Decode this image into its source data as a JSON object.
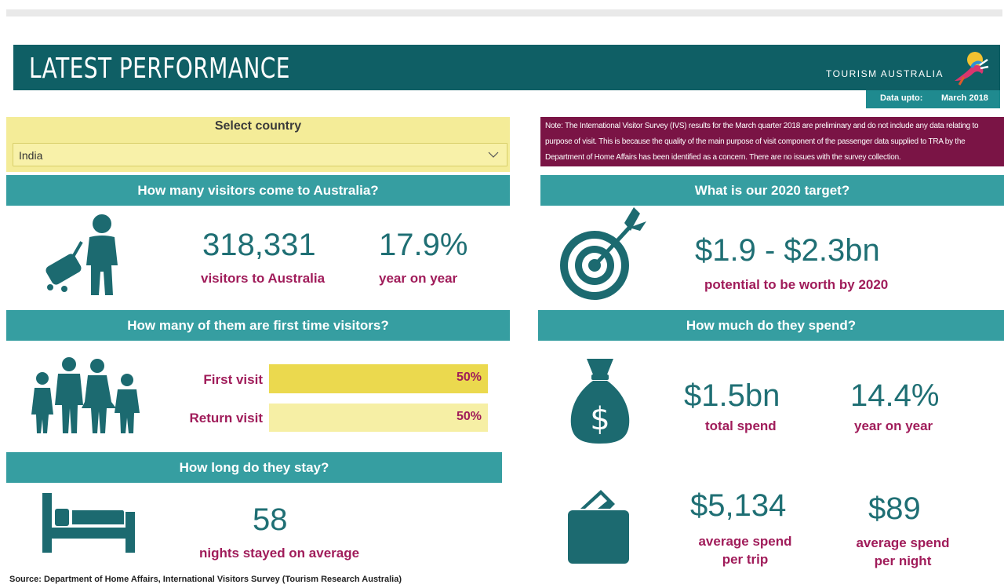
{
  "header": {
    "title": "LATEST PERFORMANCE",
    "brand": "TOURISM AUSTRALIA",
    "data_upto_label": "Data upto:",
    "data_upto_value": "March 2018"
  },
  "filter": {
    "label": "Select country",
    "selected": "India"
  },
  "note": "Note: The International Visitor Survey (IVS) results for the March quarter 2018 are preliminary and do not include any data relating to purpose of visit. This is because the quality of the main purpose of visit component of the passenger data supplied to TRA by the Department of Home Affairs has been identified as a concern. There are no issues with the survey collection.",
  "visitors": {
    "heading": "How many visitors come to Australia?",
    "count": "318,331",
    "count_label": "visitors to Australia",
    "growth": "17.9%",
    "growth_label": "year on year"
  },
  "target": {
    "heading": "What is our 2020 target?",
    "value": "$1.9 - $2.3bn",
    "label": "potential to be worth by 2020"
  },
  "first_time": {
    "heading": "How many of them are first time visitors?",
    "rows": [
      {
        "label": "First visit",
        "value": "50%",
        "fraction": 1.0,
        "color": "#ebd94e"
      },
      {
        "label": "Return visit",
        "value": "50%",
        "fraction": 1.0,
        "color": "#f6efa5"
      }
    ]
  },
  "spend": {
    "heading": "How much do they spend?",
    "total": "$1.5bn",
    "total_label": "total spend",
    "growth": "14.4%",
    "growth_label": "year on year",
    "per_trip": "$5,134",
    "per_trip_label_1": "average spend",
    "per_trip_label_2": "per trip",
    "per_night": "$89",
    "per_night_label_1": "average spend",
    "per_night_label_2": "per night"
  },
  "stay": {
    "heading": "How long do they stay?",
    "nights": "58",
    "nights_label": "nights stayed on average"
  },
  "source": "Source: Department of Home Affairs, International Visitors Survey (Tourism Research Australia)",
  "colors": {
    "banner": "#0f5f65",
    "header_bar": "#369ea1",
    "accent_text": "#a01c5a",
    "number_text": "#1f6f74",
    "note_bg": "#7a1445",
    "select_bg": "#f4ec98"
  }
}
